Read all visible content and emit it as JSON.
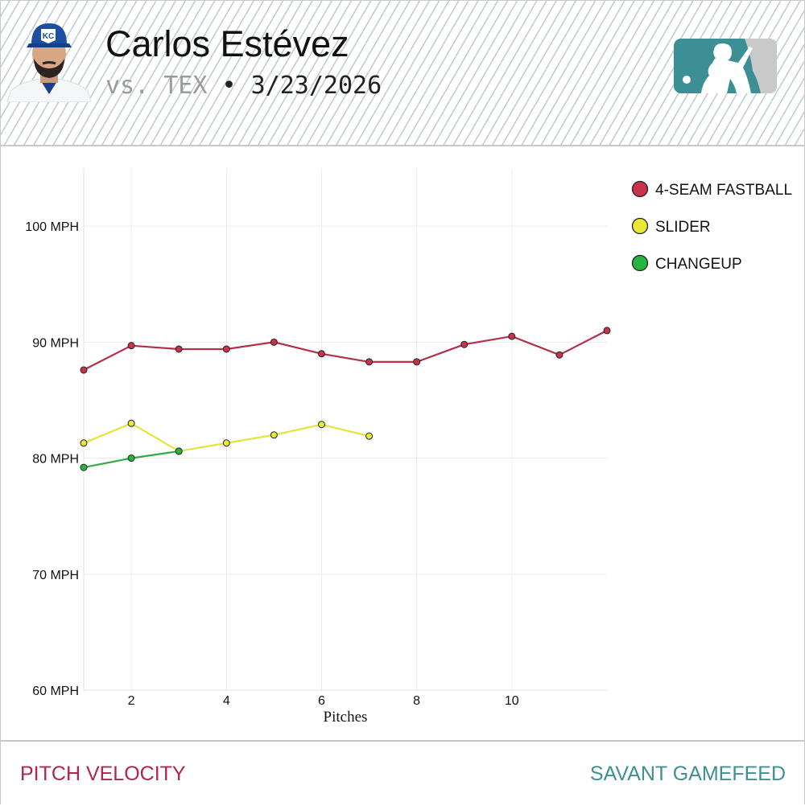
{
  "header": {
    "player_name": "Carlos Estévez",
    "opponent": "vs. TEX",
    "separator": "•",
    "date": "3/23/2026",
    "cap_logo": "KC"
  },
  "icons": {
    "headshot": "player-headshot",
    "logo": "mlb-logo-icon"
  },
  "footer": {
    "left_label": "PITCH VELOCITY",
    "right_label": "SAVANT GAMEFEED"
  },
  "colors": {
    "fastball": "#c8324a",
    "slider": "#e8e835",
    "changeup": "#27b53f",
    "fastball_line": "#b23048",
    "slider_line": "#e4e43a",
    "changeup_line": "#2fae45",
    "footer_left": "#b0244e",
    "footer_right": "#3f8f93",
    "grid": "#ececec"
  },
  "chart_data": {
    "type": "line",
    "title": "",
    "xlabel": "Pitches",
    "ylabel": "",
    "xlim": [
      1,
      12
    ],
    "ylim": [
      60,
      105
    ],
    "x_ticks": [
      2,
      4,
      6,
      8,
      10
    ],
    "y_ticks": [
      60,
      70,
      80,
      90,
      100
    ],
    "y_tick_labels": [
      "60 MPH",
      "70 MPH",
      "80 MPH",
      "90 MPH",
      "100 MPH"
    ],
    "legend_position": "top-right",
    "series": [
      {
        "name": "4-SEAM FASTBALL",
        "color_key": "fastball",
        "x": [
          1,
          2,
          3,
          4,
          5,
          6,
          7,
          8,
          9,
          10,
          11,
          12
        ],
        "values": [
          87.6,
          89.7,
          89.4,
          89.4,
          90.0,
          89.0,
          88.3,
          88.3,
          89.8,
          90.5,
          88.9,
          91.0
        ]
      },
      {
        "name": "SLIDER",
        "color_key": "slider",
        "x": [
          1,
          2,
          3,
          4,
          5,
          6,
          7
        ],
        "values": [
          81.3,
          83.0,
          80.6,
          81.3,
          82.0,
          82.9,
          81.9
        ]
      },
      {
        "name": "CHANGEUP",
        "color_key": "changeup",
        "x": [
          1,
          2,
          3
        ],
        "values": [
          79.2,
          80.0,
          80.6
        ]
      }
    ]
  }
}
